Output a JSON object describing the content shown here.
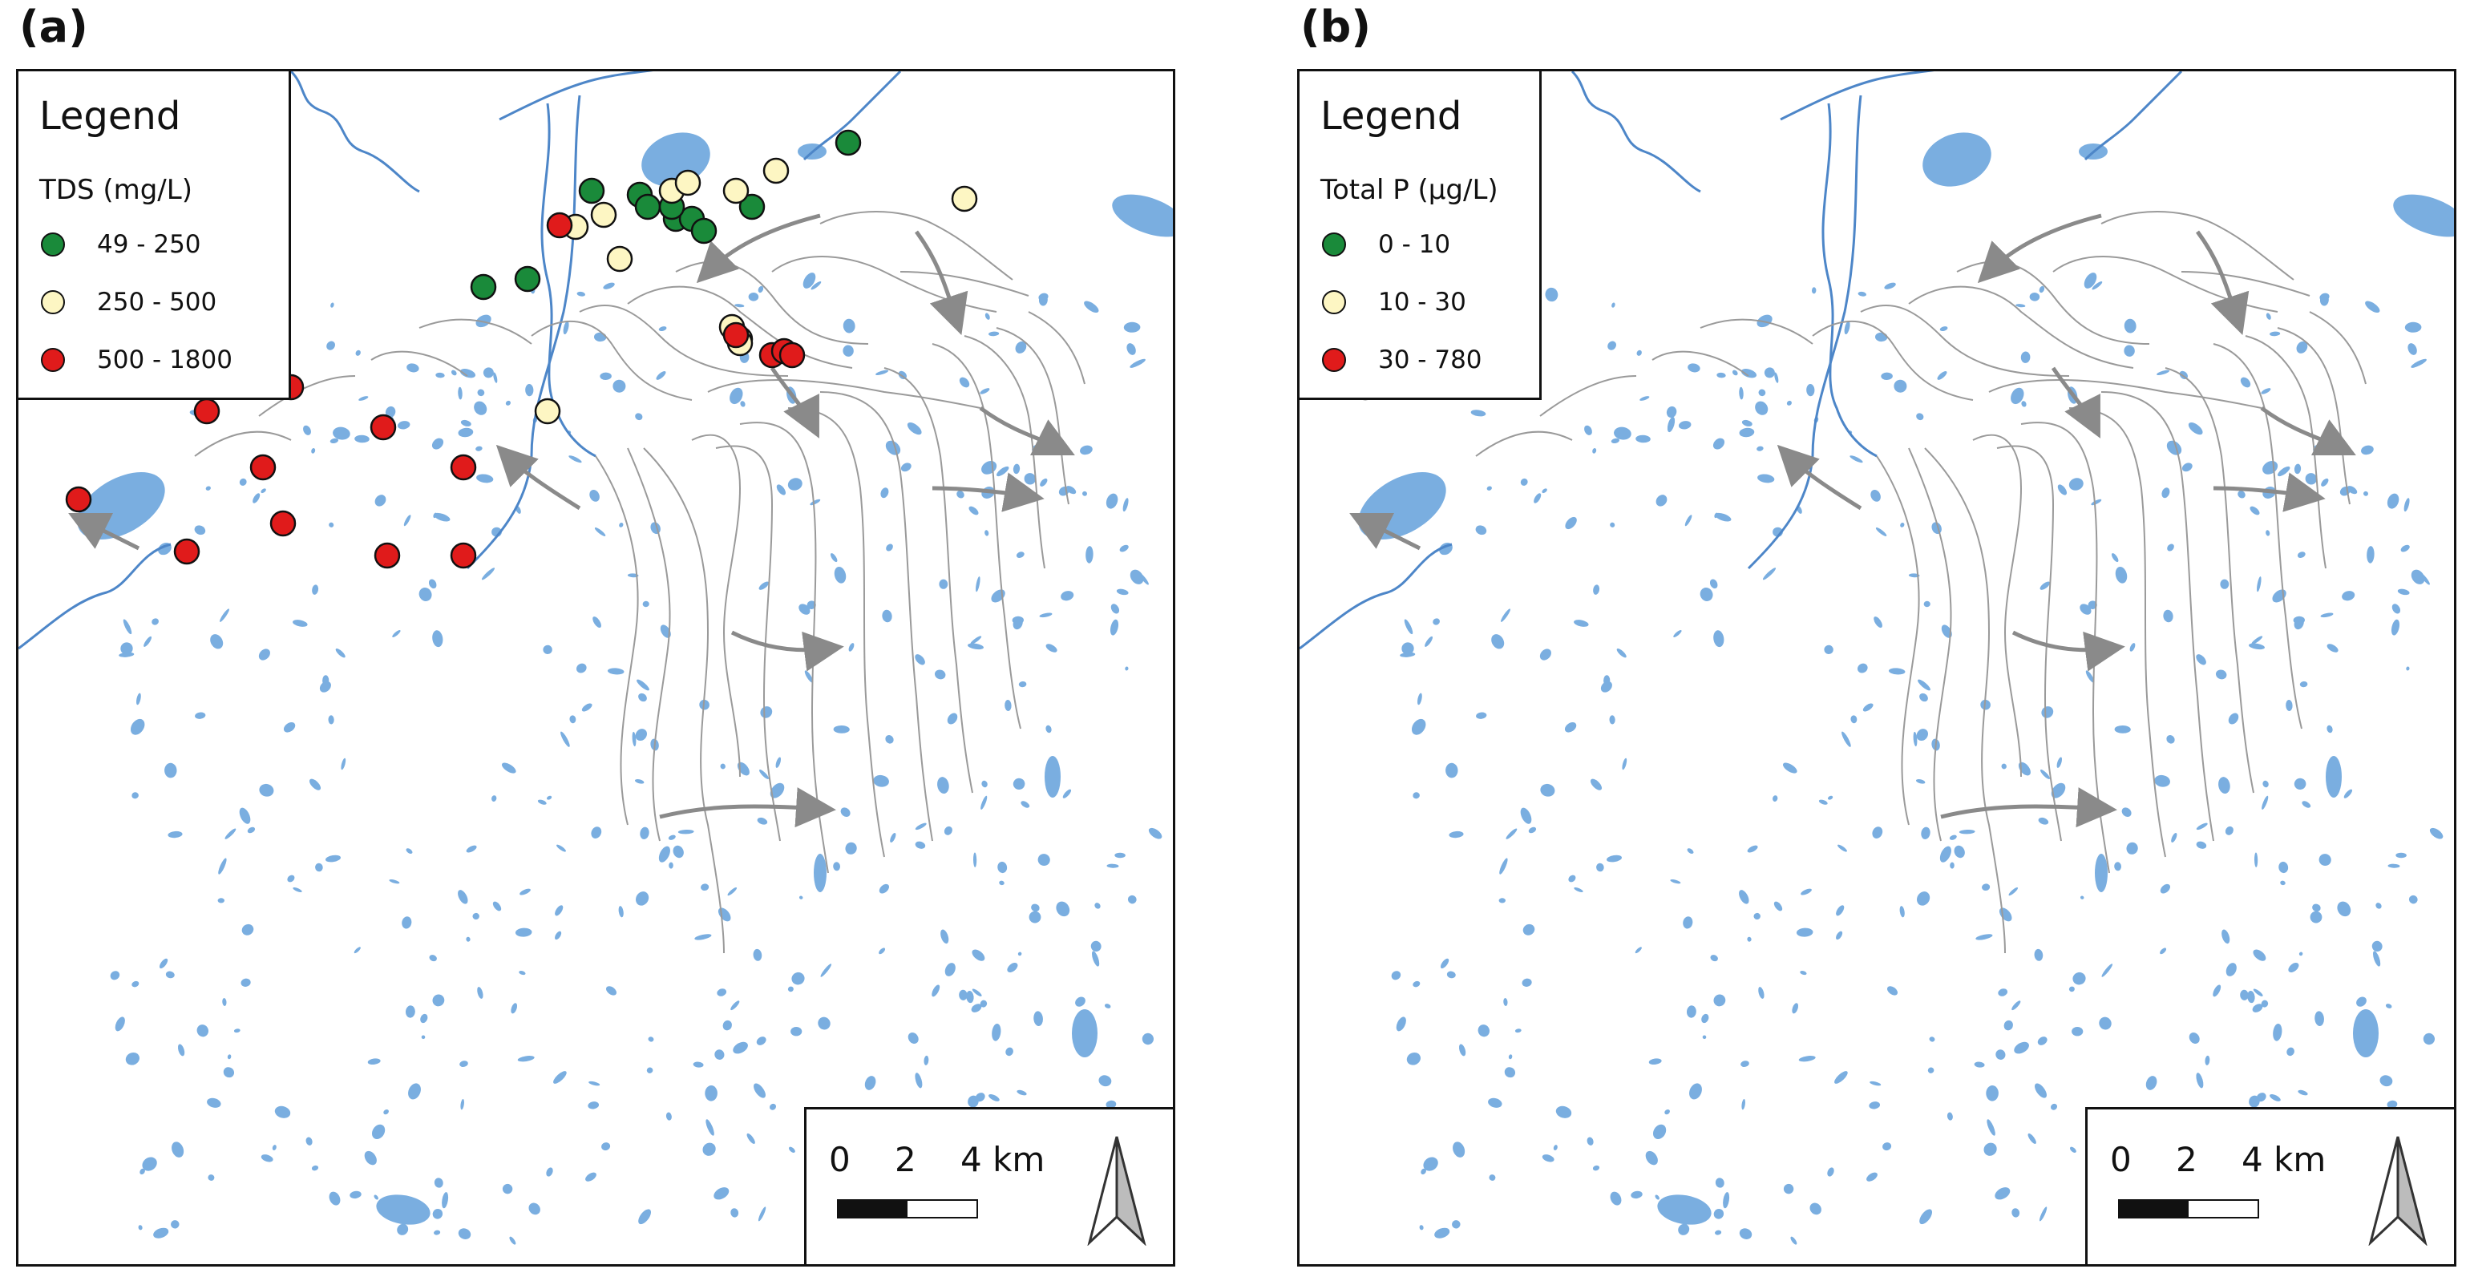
{
  "panels": [
    {
      "label": "(a)",
      "legend_title": "Legend",
      "field_label": "TDS (mg/L)",
      "classes": [
        {
          "label": "49 - 250",
          "color": "#1a8a3a"
        },
        {
          "label": "250 - 500",
          "color": "#fdf6c3"
        },
        {
          "label": "500 - 1800",
          "color": "#e01b1b"
        }
      ],
      "sites": [
        "green",
        "green",
        "green",
        "green",
        "green",
        "green",
        "green",
        "green",
        "green",
        "green",
        "green",
        "yellow",
        "yellow",
        "yellow",
        "yellow",
        "yellow",
        "yellow",
        "yellow",
        "yellow",
        "yellow",
        "yellow",
        "yellow",
        "yellow",
        "red",
        "red",
        "red",
        "red",
        "red",
        "red",
        "red",
        "red",
        "red",
        "red",
        "red",
        "red",
        "red",
        "red"
      ]
    },
    {
      "label": "(b)",
      "legend_title": "Legend",
      "field_label": "Total P (µg/L)",
      "classes": [
        {
          "label": "0 - 10",
          "color": "#1a8a3a"
        },
        {
          "label": "10 - 30",
          "color": "#fdf6c3"
        },
        {
          "label": "30 - 780",
          "color": "#e01b1b"
        }
      ],
      "sites": [
        "green",
        "green",
        "green",
        "green",
        "green",
        "green",
        "green",
        "yellow",
        "yellow",
        "yellow",
        "yellow",
        "yellow",
        "yellow",
        "yellow",
        "yellow",
        "yellow",
        "yellow",
        "yellow",
        "yellow",
        "yellow",
        "yellow",
        "red",
        "red",
        "red",
        "red",
        "red",
        "red",
        "red",
        "red",
        "red",
        "red",
        "red",
        "red",
        "red",
        "red",
        "red",
        "red",
        "red"
      ]
    }
  ],
  "scale_bar": {
    "ticks": [
      "0",
      "2",
      "4 km"
    ]
  },
  "colors": {
    "water": "#7aaee0",
    "water_edge": "#4d86c8",
    "flowline": "#9a9a9a",
    "arrow": "#8a8a8a"
  }
}
